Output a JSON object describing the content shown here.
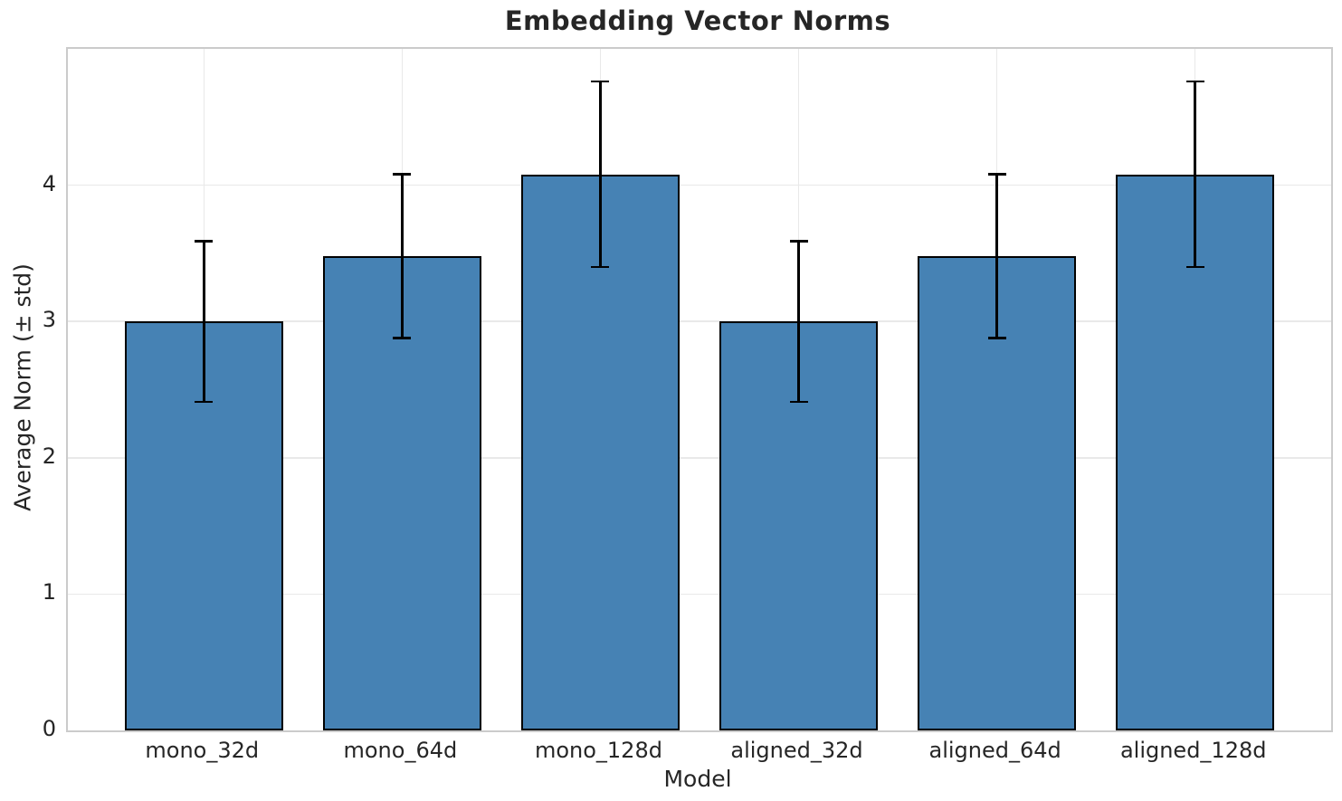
{
  "chart_data": {
    "type": "bar",
    "title": "Embedding Vector Norms",
    "xlabel": "Model",
    "ylabel": "Average Norm (± std)",
    "categories": [
      "mono_32d",
      "mono_64d",
      "mono_128d",
      "aligned_32d",
      "aligned_64d",
      "aligned_128d"
    ],
    "values": [
      3.0,
      3.48,
      4.08,
      3.0,
      3.48,
      4.08
    ],
    "errors": [
      0.59,
      0.6,
      0.68,
      0.59,
      0.6,
      0.68
    ],
    "ylim": [
      0,
      5
    ],
    "yticks": [
      0,
      1,
      2,
      3,
      4
    ],
    "grid": true,
    "legend_position": "none",
    "bar_color": "#4682b4",
    "bar_edge_color": "#000000",
    "error_bar_color": "#000000",
    "grid_color": "#e9e9e9",
    "spine_color": "#cbcbcb",
    "text_color": "#262626",
    "background_color": "#ffffff"
  }
}
